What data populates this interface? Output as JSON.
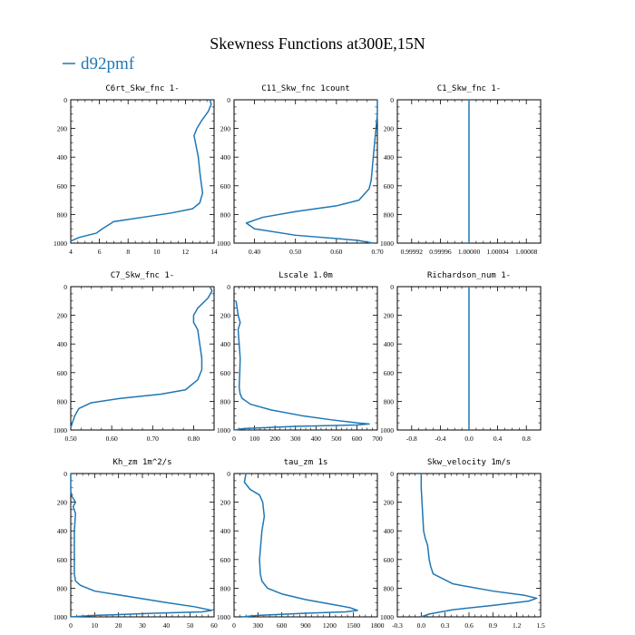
{
  "figure": {
    "title": "Skewness Functions at300E,15N",
    "legend_label": "d92pmf",
    "line_color": "#1f77b4"
  },
  "chart_data": [
    {
      "type": "line",
      "title": "C6rt_Skw_fnc   1-",
      "xlim": [
        4,
        14
      ],
      "xticks": [
        4,
        6,
        8,
        10,
        12,
        14
      ],
      "xticklabels": [
        "4",
        "6",
        "8",
        "10",
        "12",
        "14"
      ],
      "ylim": [
        1000,
        0
      ],
      "yticks": [
        0,
        200,
        400,
        600,
        800,
        1000
      ],
      "yticklabels": [
        "0",
        "200",
        "400",
        "600",
        "800",
        "1000"
      ],
      "series": [
        {
          "x": [
            13.7,
            13.8,
            13.6,
            13.1,
            12.8,
            12.6,
            12.7,
            12.9,
            13.0,
            13.1,
            13.2,
            13.0,
            12.5,
            11.0,
            9.0,
            7.0,
            6.2,
            5.8,
            4.6,
            4.0
          ],
          "y": [
            0,
            30,
            80,
            150,
            200,
            250,
            300,
            400,
            500,
            580,
            650,
            720,
            760,
            790,
            820,
            850,
            900,
            930,
            960,
            985
          ]
        }
      ]
    },
    {
      "type": "line",
      "title": "C11_Skw_fnc   1count",
      "xlim": [
        0.35,
        0.7
      ],
      "xticks": [
        0.4,
        0.5,
        0.6,
        0.7
      ],
      "xticklabels": [
        "0.40",
        "0.50",
        "0.60",
        "0.70"
      ],
      "ylim": [
        1000,
        0
      ],
      "yticks": [
        0,
        200,
        400,
        600,
        800,
        1000
      ],
      "yticklabels": [
        "0",
        "200",
        "400",
        "600",
        "800",
        "1000"
      ],
      "series": [
        {
          "x": [
            0.7,
            0.7,
            0.695,
            0.69,
            0.685,
            0.68,
            0.655,
            0.6,
            0.5,
            0.42,
            0.38,
            0.4,
            0.5,
            0.65,
            0.69
          ],
          "y": [
            0,
            100,
            250,
            400,
            560,
            620,
            700,
            740,
            780,
            820,
            860,
            900,
            945,
            980,
            1000
          ]
        }
      ]
    },
    {
      "type": "line",
      "title": "C1_Skw_fnc   1-",
      "xlim": [
        0.9999,
        1.0001
      ],
      "xticks": [
        0.99992,
        0.99996,
        1.0,
        1.00004,
        1.00008
      ],
      "xticklabels": [
        "0.99992",
        "0.99996",
        "1.00000",
        "1.00004",
        "1.00008"
      ],
      "ylim": [
        1000,
        0
      ],
      "yticks": [
        0,
        200,
        400,
        600,
        800,
        1000
      ],
      "yticklabels": [
        "0",
        "200",
        "400",
        "600",
        "800",
        "1000"
      ],
      "series": [
        {
          "x": [
            1.0,
            1.0
          ],
          "y": [
            0,
            1000
          ]
        }
      ]
    },
    {
      "type": "line",
      "title": "C7_Skw_fnc   1-",
      "xlim": [
        0.5,
        0.85
      ],
      "xticks": [
        0.5,
        0.6,
        0.7,
        0.8
      ],
      "xticklabels": [
        "0.50",
        "0.60",
        "0.70",
        "0.80"
      ],
      "ylim": [
        1000,
        0
      ],
      "yticks": [
        0,
        200,
        400,
        600,
        800,
        1000
      ],
      "yticklabels": [
        "0",
        "200",
        "400",
        "600",
        "800",
        "1000"
      ],
      "series": [
        {
          "x": [
            0.84,
            0.845,
            0.835,
            0.81,
            0.8,
            0.8,
            0.81,
            0.815,
            0.82,
            0.82,
            0.81,
            0.78,
            0.72,
            0.62,
            0.55,
            0.52,
            0.51,
            0.505,
            0.5
          ],
          "y": [
            0,
            30,
            80,
            150,
            200,
            250,
            300,
            400,
            500,
            580,
            650,
            720,
            750,
            780,
            810,
            850,
            900,
            940,
            985
          ]
        }
      ]
    },
    {
      "type": "line",
      "title": "Lscale   1.0m",
      "xlim": [
        0,
        700
      ],
      "xticks": [
        0,
        100,
        200,
        300,
        400,
        500,
        600,
        700
      ],
      "xticklabels": [
        "0",
        "100",
        "200",
        "300",
        "400",
        "500",
        "600",
        "700"
      ],
      "ylim": [
        1000,
        0
      ],
      "yticks": [
        0,
        200,
        400,
        600,
        800,
        1000
      ],
      "yticklabels": [
        "0",
        "200",
        "400",
        "600",
        "800",
        "1000"
      ],
      "series": [
        {
          "x": [
            10,
            15,
            20,
            30,
            20,
            25,
            30,
            28,
            25,
            30,
            40,
            80,
            180,
            330,
            480,
            600,
            660,
            600,
            300,
            50,
            0
          ],
          "y": [
            100,
            150,
            200,
            250,
            300,
            400,
            500,
            600,
            700,
            750,
            780,
            820,
            860,
            900,
            930,
            950,
            958,
            965,
            975,
            990,
            1000
          ]
        }
      ]
    },
    {
      "type": "line",
      "title": "Richardson_num   1-",
      "xlim": [
        -1.0,
        1.0
      ],
      "xticks": [
        -0.8,
        -0.4,
        0.0,
        0.4,
        0.8
      ],
      "xticklabels": [
        "-0.8",
        "-0.4",
        "0.0",
        "0.4",
        "0.8"
      ],
      "ylim": [
        1000,
        0
      ],
      "yticks": [
        0,
        200,
        400,
        600,
        800,
        1000
      ],
      "yticklabels": [
        "0",
        "200",
        "400",
        "600",
        "800",
        "1000"
      ],
      "series": [
        {
          "x": [
            0.0,
            0.0
          ],
          "y": [
            0,
            1000
          ]
        }
      ]
    },
    {
      "type": "line",
      "title": "Kh_zm   1m^2/s",
      "xlim": [
        0,
        60
      ],
      "xticks": [
        0,
        10,
        20,
        30,
        40,
        50,
        60
      ],
      "xticklabels": [
        "0",
        "10",
        "20",
        "30",
        "40",
        "50",
        "60"
      ],
      "ylim": [
        1000,
        0
      ],
      "yticks": [
        0,
        200,
        400,
        600,
        800,
        1000
      ],
      "yticklabels": [
        "0",
        "200",
        "400",
        "600",
        "800",
        "1000"
      ],
      "series": [
        {
          "x": [
            0,
            0,
            0.5,
            2,
            1,
            2,
            1.5,
            1.5,
            1.5,
            2,
            4,
            10,
            25,
            40,
            52,
            59,
            55,
            35,
            10,
            0
          ],
          "y": [
            0,
            120,
            160,
            200,
            230,
            280,
            400,
            600,
            700,
            750,
            780,
            820,
            860,
            900,
            930,
            955,
            965,
            975,
            990,
            1000
          ]
        }
      ]
    },
    {
      "type": "line",
      "title": "tau_zm   1s",
      "xlim": [
        0,
        1800
      ],
      "xticks": [
        0,
        300,
        600,
        900,
        1200,
        1500,
        1800
      ],
      "xticklabels": [
        "0",
        "300",
        "600",
        "900",
        "1200",
        "1500",
        "1800"
      ],
      "ylim": [
        1000,
        0
      ],
      "yticks": [
        0,
        200,
        400,
        600,
        800,
        1000
      ],
      "yticklabels": [
        "0",
        "200",
        "400",
        "600",
        "800",
        "1000"
      ],
      "series": [
        {
          "x": [
            150,
            130,
            200,
            320,
            360,
            380,
            350,
            320,
            330,
            350,
            420,
            600,
            900,
            1200,
            1450,
            1550,
            1400,
            900,
            300,
            100
          ],
          "y": [
            0,
            60,
            110,
            150,
            200,
            300,
            400,
            600,
            700,
            750,
            800,
            840,
            880,
            910,
            935,
            955,
            965,
            975,
            990,
            1000
          ]
        }
      ]
    },
    {
      "type": "line",
      "title": "Skw_velocity   1m/s",
      "xlim": [
        -0.3,
        1.5
      ],
      "xticks": [
        -0.3,
        0.0,
        0.3,
        0.6,
        0.9,
        1.2,
        1.5
      ],
      "xticklabels": [
        "-0.3",
        "0.0",
        "0.3",
        "0.6",
        "0.9",
        "1.2",
        "1.5"
      ],
      "ylim": [
        1000,
        0
      ],
      "yticks": [
        0,
        200,
        400,
        600,
        800,
        1000
      ],
      "yticklabels": [
        "0",
        "200",
        "400",
        "600",
        "800",
        "1000"
      ],
      "series": [
        {
          "x": [
            0.0,
            0.0,
            0.01,
            0.02,
            0.03,
            0.05,
            0.08,
            0.1,
            0.12,
            0.15,
            0.4,
            0.9,
            1.3,
            1.45,
            1.35,
            0.9,
            0.4,
            0.1,
            0.0
          ],
          "y": [
            0,
            100,
            200,
            300,
            400,
            450,
            500,
            600,
            650,
            700,
            770,
            820,
            850,
            870,
            890,
            920,
            950,
            980,
            1000
          ]
        }
      ]
    }
  ]
}
